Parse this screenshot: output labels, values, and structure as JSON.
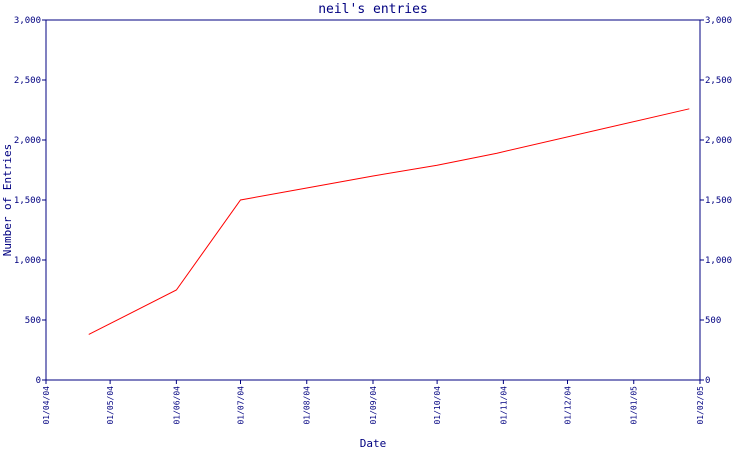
{
  "chart_data": {
    "type": "line",
    "title": "neil's entries",
    "x_label": "Date",
    "y_label": "Number of Entries",
    "x": [
      "21/04/04",
      "01/06/04",
      "01/07/04",
      "01/08/04",
      "01/09/04",
      "01/10/04",
      "29/10/04",
      "27/01/05"
    ],
    "series": [
      {
        "name": "neil",
        "color": "#ff0000",
        "values": [
          380,
          750,
          1500,
          1600,
          1700,
          1790,
          1890,
          2260
        ]
      }
    ],
    "xlim": [
      "01/04/04",
      "01/02/05"
    ],
    "xticks": [
      "01/04/04",
      "01/05/04",
      "01/06/04",
      "01/07/04",
      "01/08/04",
      "01/09/04",
      "01/10/04",
      "01/11/04",
      "01/12/04",
      "01/01/05",
      "01/02/05"
    ],
    "ylim": [
      0,
      3000
    ],
    "yticks": [
      0,
      500,
      {
        "value": 1000,
        "label": "1,000"
      },
      {
        "value": 1500,
        "label": "1,500"
      },
      {
        "value": 2000,
        "label": "2,000"
      },
      {
        "value": 2500,
        "label": "2,500"
      },
      {
        "value": 3000,
        "label": "3,000"
      }
    ],
    "axis_color": "#000080"
  }
}
